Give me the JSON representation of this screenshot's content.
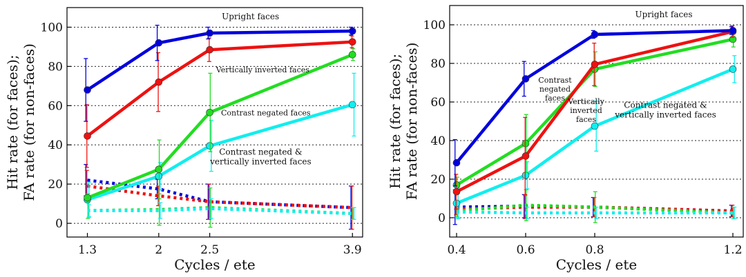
{
  "chart_data": [
    {
      "type": "line",
      "x": [
        1.3,
        2,
        2.5,
        3.9
      ],
      "xticks": [
        "1.3",
        "2",
        "2.5",
        "3.9"
      ],
      "xlabel": "Cycles / ete",
      "ylabel_line1": "Hit rate (for faces);",
      "ylabel_line2": "FA rate (for non-faces)",
      "ylim": [
        -7,
        110
      ],
      "yticks": [
        0,
        20,
        40,
        60,
        80,
        100
      ],
      "ytick_labels": [
        "0",
        "20",
        "40",
        "60",
        "80",
        "100"
      ],
      "grid": "horizontal dotted",
      "series": [
        {
          "color": "#0000dd",
          "values": [
            68,
            92,
            97,
            98
          ],
          "err": [
            16,
            9,
            3,
            2
          ],
          "style": "solid"
        },
        {
          "color": "#ee1111",
          "values": [
            44.5,
            72,
            88.5,
            92.5
          ],
          "err": [
            16,
            15,
            6,
            3
          ],
          "style": "solid"
        },
        {
          "color": "#22dd22",
          "values": [
            13,
            27.5,
            56.5,
            86
          ],
          "err": [
            2,
            15,
            20,
            3
          ],
          "style": "solid"
        },
        {
          "color": "#11eeee",
          "values": [
            12,
            24,
            39.5,
            60.5
          ],
          "err": [
            9,
            7,
            13,
            16
          ],
          "style": "solid"
        },
        {
          "color": "#0000dd",
          "values": [
            22,
            17.5,
            11,
            8
          ],
          "err": [
            8,
            5,
            9,
            11
          ],
          "style": "dotted"
        },
        {
          "color": "#ee1111",
          "values": [
            19,
            14,
            11,
            8
          ],
          "err": [
            8,
            5,
            9,
            11
          ],
          "style": "dotted"
        },
        {
          "color": "#22dd22",
          "values": [
            6.5,
            7,
            8,
            5
          ],
          "err": [
            4,
            8,
            10,
            3
          ],
          "style": "dotted"
        },
        {
          "color": "#11eeee",
          "values": [
            6.5,
            6.5,
            7.5,
            5
          ],
          "err": [
            3,
            4,
            5,
            3
          ],
          "style": "dotted"
        }
      ],
      "annotations": [
        {
          "lines": [
            "Upright faces"
          ],
          "x": 2.9,
          "y": 104,
          "size": 12
        },
        {
          "lines": [
            "Vertically inverted faces"
          ],
          "x": 3.02,
          "y": 77,
          "size": 11
        },
        {
          "lines": [
            "Contrast negated faces"
          ],
          "x": 3.05,
          "y": 55,
          "size": 11
        },
        {
          "lines": [
            "Contrast negated &",
            "vertically inverted faces"
          ],
          "x": 3.0,
          "y": 35,
          "size": 12
        }
      ]
    },
    {
      "type": "line",
      "x": [
        0.4,
        0.6,
        0.8,
        1.2
      ],
      "xticks": [
        "0.4",
        "0.6",
        "0.8",
        "1.2"
      ],
      "xlabel": "Cycles / ete",
      "ylabel_line1": "Hit rate (for faces);",
      "ylabel_line2": "FA rate (for non-faces)",
      "ylim": [
        -10,
        110
      ],
      "yticks": [
        0,
        20,
        40,
        60,
        80,
        100
      ],
      "ytick_labels": [
        "0",
        "20",
        "40",
        "60",
        "80",
        "100"
      ],
      "grid": "horizontal dotted",
      "series": [
        {
          "color": "#0000dd",
          "values": [
            28.5,
            72,
            95,
            97
          ],
          "err": [
            12,
            9,
            2,
            2
          ],
          "style": "solid"
        },
        {
          "color": "#ee1111",
          "values": [
            13.5,
            32,
            79.5,
            96.5
          ],
          "err": [
            9,
            20,
            11,
            3
          ],
          "style": "solid"
        },
        {
          "color": "#22dd22",
          "values": [
            17,
            38.5,
            77,
            92.5
          ],
          "err": [
            4,
            15,
            9,
            4
          ],
          "style": "solid"
        },
        {
          "color": "#11eeee",
          "values": [
            7.5,
            22,
            47.5,
            77
          ],
          "err": [
            8,
            7,
            13,
            7
          ],
          "style": "solid"
        },
        {
          "color": "#0000dd",
          "values": [
            5.5,
            6,
            5.5,
            3.5
          ],
          "err": [
            9,
            6,
            5,
            3
          ],
          "style": "dotted"
        },
        {
          "color": "#ee1111",
          "values": [
            4.5,
            5.5,
            5.5,
            3.5
          ],
          "err": [
            3,
            6,
            5,
            3
          ],
          "style": "dotted"
        },
        {
          "color": "#22dd22",
          "values": [
            3.5,
            6.5,
            5.5,
            2.5
          ],
          "err": [
            3,
            8,
            8,
            3
          ],
          "style": "dotted"
        },
        {
          "color": "#11eeee",
          "values": [
            3,
            2.5,
            2.5,
            2.5
          ],
          "err": [
            3,
            3,
            3,
            3
          ],
          "style": "dotted"
        }
      ],
      "annotations": [
        {
          "lines": [
            "Upright faces"
          ],
          "x": 1.0,
          "y": 104,
          "size": 12
        },
        {
          "lines": [
            "Contrast",
            "negated",
            "faces"
          ],
          "x": 0.685,
          "y": 70,
          "size": 11
        },
        {
          "lines": [
            "Vertically",
            "inverted",
            "faces"
          ],
          "x": 0.775,
          "y": 59,
          "size": 11
        },
        {
          "lines": [
            "Contrast negated &",
            "vertically inverted faces"
          ],
          "x": 1.005,
          "y": 57,
          "size": 12
        }
      ]
    }
  ]
}
